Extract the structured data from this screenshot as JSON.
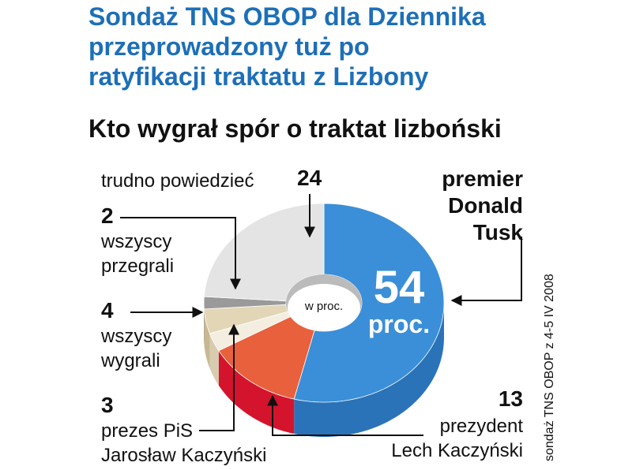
{
  "chart_data": {
    "type": "pie",
    "title": "Sondaż TNS OBOP dla Dziennika\nprzeprowadzony tuż po\nratyfikacji traktatu z Lizbony",
    "subtitle": "Kto wygrał spór o traktat lizboński",
    "center_label": "w proc.",
    "source": "sondaż TNS OBOP z 4-5 IV 2008",
    "categories": [
      "premier\nDonald\nTusk",
      "prezydent\nLech Kaczyński",
      "prezes PiS\nJarosław Kaczyński",
      "wszyscy\nwygrali",
      "wszyscy\nprzegrali",
      "trudno powiedzieć"
    ],
    "values": [
      54,
      13,
      3,
      4,
      2,
      24
    ],
    "value_labels": [
      "54\nproc.",
      "13",
      "3",
      "4",
      "2",
      "24"
    ],
    "colors": [
      "#3a8fd8",
      "#e8603c",
      "#f3eee0",
      "#e2d6b6",
      "#9a9a9a",
      "#e4e4e4"
    ],
    "side_colors": [
      "#2b73b8",
      "#d4142c",
      "#d8ccb0",
      "#c8b890",
      "#777777",
      "#c8c8c8"
    ]
  }
}
